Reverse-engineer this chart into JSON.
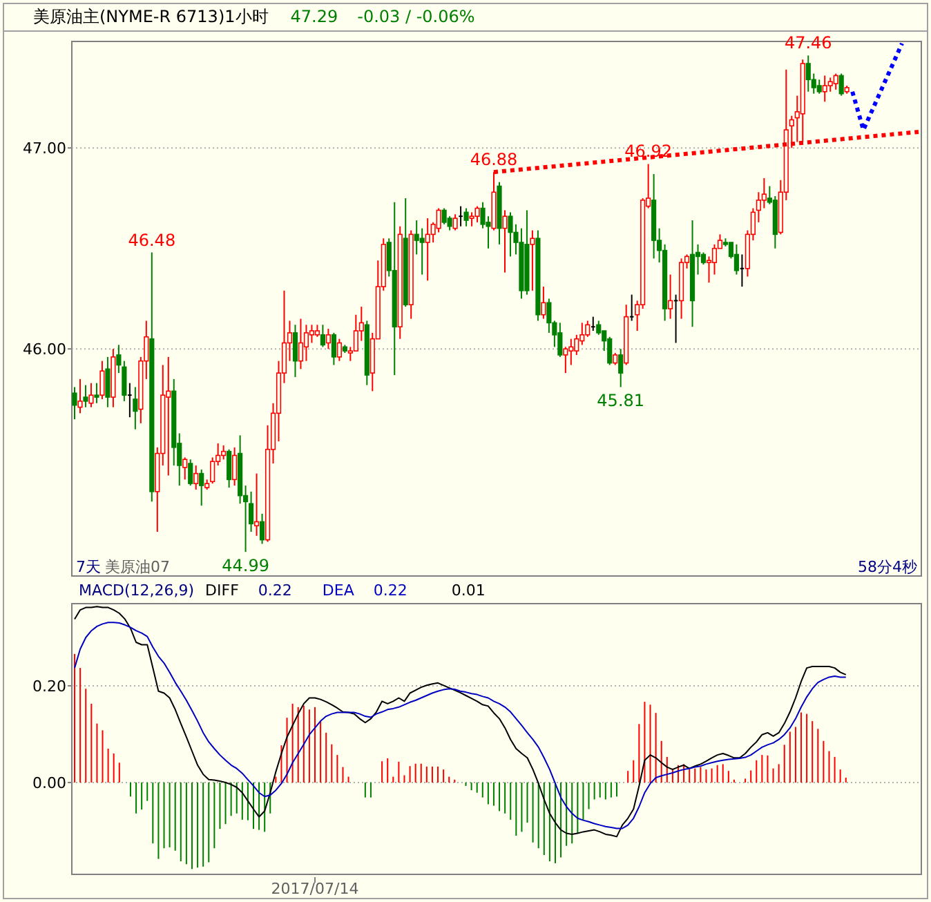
{
  "chart_data": [
    {
      "type": "candlestick",
      "title": "美原油主(NYME-R 6713)1小时",
      "tick_labels": "y",
      "grid": "y",
      "ylim": [
        44.87,
        47.53
      ],
      "yticks": [
        {
          "value": 46,
          "label": "46.00"
        },
        {
          "value": 47,
          "label": "47.00"
        }
      ],
      "annotations": [
        "47.29",
        "-0.03 / -0.06%",
        "7天",
        "美原油07",
        "58分4秒",
        {
          "text": "46.48",
          "y": 46.48
        },
        {
          "text": "44.99",
          "y": 44.99
        },
        {
          "text": "46.88",
          "y": 46.88
        },
        {
          "text": "46.92",
          "y": 46.92
        },
        {
          "text": "45.81",
          "y": 45.81
        },
        {
          "text": "47.46",
          "y": 47.46
        }
      ],
      "categories": [
        null,
        null,
        null,
        null,
        null,
        null,
        null,
        null,
        null,
        null,
        null,
        null,
        null,
        null,
        null,
        null,
        null,
        null,
        null,
        null,
        null,
        null,
        null,
        null,
        null,
        null,
        null,
        null,
        null,
        null,
        null,
        null,
        null,
        null,
        null,
        null,
        null,
        null,
        null,
        null,
        null,
        null,
        null,
        null,
        null,
        null,
        null,
        null,
        null,
        null,
        null,
        null,
        null,
        null,
        null,
        null,
        null,
        null,
        null,
        null,
        null,
        null,
        null,
        null,
        null,
        null,
        null,
        null,
        null,
        null,
        null,
        null,
        null,
        null,
        null,
        null,
        null,
        null,
        null,
        null,
        null,
        null,
        null,
        null,
        null,
        null,
        null,
        null,
        null,
        null,
        null,
        null,
        null,
        null,
        null,
        null,
        null,
        null,
        null,
        null,
        null,
        null,
        null,
        null,
        null,
        null,
        null,
        null,
        null,
        null,
        null,
        null,
        null,
        null,
        null,
        null,
        null,
        null,
        null,
        null,
        null,
        null,
        null,
        null,
        null,
        null,
        null,
        null,
        null,
        null,
        null,
        null,
        null,
        null,
        null,
        null,
        null,
        null,
        null,
        null,
        null,
        null,
        null,
        null,
        null,
        null,
        null,
        null,
        null,
        null,
        null,
        null,
        null,
        null
      ],
      "ohlc": [
        [
          45.78,
          45.81,
          45.65,
          45.72
        ],
        [
          45.71,
          45.85,
          45.68,
          45.74
        ],
        [
          45.76,
          45.82,
          45.71,
          45.74
        ],
        [
          45.73,
          45.83,
          45.71,
          45.77
        ],
        [
          45.77,
          45.83,
          45.73,
          45.76
        ],
        [
          45.77,
          45.94,
          45.75,
          45.89
        ],
        [
          45.9,
          45.96,
          45.71,
          45.76
        ],
        [
          45.76,
          46.0,
          45.71,
          45.96
        ],
        [
          45.97,
          46.02,
          45.88,
          45.92
        ],
        [
          45.91,
          45.94,
          45.74,
          45.77
        ],
        [
          45.77,
          45.83,
          45.66,
          45.77
        ],
        [
          45.75,
          45.81,
          45.6,
          45.69
        ],
        [
          45.7,
          45.96,
          45.63,
          45.94
        ],
        [
          45.94,
          46.14,
          45.85,
          46.06
        ],
        [
          46.05,
          46.48,
          45.24,
          45.29
        ],
        [
          45.29,
          45.51,
          45.09,
          45.48
        ],
        [
          45.48,
          45.92,
          45.42,
          45.77
        ],
        [
          45.76,
          45.96,
          45.37,
          45.79
        ],
        [
          45.79,
          45.85,
          45.42,
          45.51
        ],
        [
          45.53,
          45.58,
          45.32,
          45.42
        ],
        [
          45.41,
          45.46,
          45.35,
          45.45
        ],
        [
          45.43,
          45.45,
          45.32,
          45.33
        ],
        [
          45.33,
          45.42,
          45.3,
          45.38
        ],
        [
          45.38,
          45.4,
          45.22,
          45.32
        ],
        [
          45.31,
          45.35,
          45.3,
          45.33
        ],
        [
          45.34,
          45.46,
          45.33,
          45.44
        ],
        [
          45.44,
          45.53,
          45.42,
          45.47
        ],
        [
          45.47,
          45.52,
          45.45,
          45.49
        ],
        [
          45.49,
          45.5,
          45.31,
          45.35
        ],
        [
          45.35,
          45.51,
          45.32,
          45.47
        ],
        [
          45.48,
          45.57,
          45.23,
          45.27
        ],
        [
          45.27,
          45.32,
          44.99,
          45.24
        ],
        [
          45.23,
          45.29,
          45.09,
          45.13
        ],
        [
          45.12,
          45.38,
          45.07,
          45.14
        ],
        [
          45.14,
          45.18,
          45.03,
          45.05
        ],
        [
          45.05,
          45.62,
          45.04,
          45.5
        ],
        [
          45.5,
          45.73,
          45.43,
          45.68
        ],
        [
          45.68,
          45.94,
          45.54,
          45.88
        ],
        [
          45.88,
          46.29,
          45.83,
          46.03
        ],
        [
          46.03,
          46.14,
          45.94,
          46.08
        ],
        [
          46.08,
          46.12,
          45.86,
          45.94
        ],
        [
          45.94,
          46.15,
          45.9,
          46.03
        ],
        [
          46.01,
          46.12,
          45.94,
          46.08
        ],
        [
          46.07,
          46.12,
          46.03,
          46.09
        ],
        [
          46.07,
          46.12,
          46.06,
          46.09
        ],
        [
          46.07,
          46.12,
          46.01,
          46.02
        ],
        [
          46.03,
          46.1,
          46.0,
          46.07
        ],
        [
          46.07,
          46.08,
          45.92,
          45.96
        ],
        [
          45.96,
          46.05,
          45.94,
          46.03
        ],
        [
          46.01,
          46.02,
          45.98,
          45.99
        ],
        [
          45.98,
          46.01,
          45.94,
          45.99
        ],
        [
          45.99,
          46.17,
          45.99,
          46.09
        ],
        [
          46.09,
          46.21,
          46.04,
          46.13
        ],
        [
          46.12,
          46.14,
          45.82,
          45.87
        ],
        [
          45.88,
          46.08,
          45.79,
          46.05
        ],
        [
          46.05,
          46.44,
          46.05,
          46.31
        ],
        [
          46.31,
          46.55,
          46.29,
          46.52
        ],
        [
          46.53,
          46.55,
          46.36,
          46.39
        ],
        [
          46.39,
          46.73,
          45.87,
          46.11
        ],
        [
          46.11,
          46.61,
          46.05,
          46.57
        ],
        [
          46.55,
          46.75,
          46.21,
          46.22
        ],
        [
          46.22,
          46.59,
          46.15,
          46.57
        ],
        [
          46.57,
          46.64,
          46.47,
          46.54
        ],
        [
          46.55,
          46.6,
          46.37,
          46.53
        ],
        [
          46.53,
          46.65,
          46.34,
          46.57
        ],
        [
          46.57,
          46.63,
          46.53,
          46.62
        ],
        [
          46.6,
          46.7,
          46.58,
          46.69
        ],
        [
          46.69,
          46.7,
          46.62,
          46.63
        ],
        [
          46.65,
          46.66,
          46.59,
          46.61
        ],
        [
          46.6,
          46.67,
          46.59,
          46.65
        ],
        [
          46.66,
          46.71,
          46.61,
          46.66
        ],
        [
          46.68,
          46.7,
          46.61,
          46.64
        ],
        [
          46.65,
          46.68,
          46.61,
          46.66
        ],
        [
          46.66,
          46.71,
          46.63,
          46.7
        ],
        [
          46.7,
          46.73,
          46.6,
          46.62
        ],
        [
          46.63,
          46.66,
          46.5,
          46.61
        ],
        [
          46.6,
          46.88,
          46.59,
          46.78
        ],
        [
          46.81,
          46.83,
          46.52,
          46.6
        ],
        [
          46.6,
          46.69,
          46.38,
          46.66
        ],
        [
          46.66,
          46.68,
          46.46,
          46.58
        ],
        [
          46.58,
          46.62,
          46.47,
          46.53
        ],
        [
          46.53,
          46.6,
          46.25,
          46.29
        ],
        [
          46.52,
          46.69,
          46.27,
          46.29
        ],
        [
          46.52,
          46.59,
          46.29,
          46.55
        ],
        [
          46.55,
          46.59,
          46.14,
          46.17
        ],
        [
          46.17,
          46.31,
          46.15,
          46.23
        ],
        [
          46.23,
          46.25,
          46.08,
          46.13
        ],
        [
          46.13,
          46.14,
          46.01,
          46.07
        ],
        [
          46.08,
          46.13,
          45.96,
          45.97
        ],
        [
          45.97,
          46.01,
          45.88,
          46.0
        ],
        [
          45.99,
          46.05,
          45.92,
          46.01
        ],
        [
          45.99,
          46.07,
          45.97,
          46.05
        ],
        [
          46.04,
          46.13,
          46.02,
          46.07
        ],
        [
          46.07,
          46.14,
          46.06,
          46.12
        ],
        [
          46.11,
          46.16,
          46.09,
          46.11
        ],
        [
          46.12,
          46.14,
          46.07,
          46.08
        ],
        [
          46.09,
          46.09,
          45.99,
          46.04
        ],
        [
          46.05,
          46.06,
          45.92,
          45.93
        ],
        [
          45.93,
          45.98,
          45.92,
          45.97
        ],
        [
          45.97,
          46.0,
          45.81,
          45.88
        ],
        [
          45.93,
          46.22,
          45.92,
          46.16
        ],
        [
          46.16,
          46.27,
          46.14,
          46.16
        ],
        [
          46.17,
          46.24,
          46.09,
          46.22
        ],
        [
          46.22,
          46.75,
          46.2,
          46.74
        ],
        [
          46.71,
          46.92,
          46.7,
          46.75
        ],
        [
          46.74,
          46.87,
          46.45,
          46.54
        ],
        [
          46.54,
          46.6,
          46.43,
          46.49
        ],
        [
          46.49,
          46.52,
          46.14,
          46.2
        ],
        [
          46.2,
          46.37,
          46.15,
          46.24
        ],
        [
          46.24,
          46.27,
          46.03,
          46.24
        ],
        [
          46.24,
          46.45,
          46.15,
          46.43
        ],
        [
          46.43,
          46.47,
          46.4,
          46.46
        ],
        [
          46.47,
          46.64,
          46.11,
          46.24
        ],
        [
          46.48,
          46.52,
          46.37,
          46.46
        ],
        [
          46.47,
          46.48,
          46.42,
          46.43
        ],
        [
          46.43,
          46.46,
          46.33,
          46.44
        ],
        [
          46.43,
          46.52,
          46.37,
          46.5
        ],
        [
          46.5,
          46.57,
          46.5,
          46.54
        ],
        [
          46.53,
          46.55,
          46.51,
          46.52
        ],
        [
          46.53,
          46.53,
          46.45,
          46.46
        ],
        [
          46.47,
          46.52,
          46.37,
          46.39
        ],
        [
          46.4,
          46.47,
          46.31,
          46.4
        ],
        [
          46.4,
          46.59,
          46.36,
          46.57
        ],
        [
          46.57,
          46.7,
          46.54,
          46.68
        ],
        [
          46.69,
          46.78,
          46.63,
          46.74
        ],
        [
          46.74,
          46.85,
          46.7,
          46.77
        ],
        [
          46.75,
          46.81,
          46.72,
          46.73
        ],
        [
          46.74,
          46.76,
          46.5,
          46.57
        ],
        [
          46.58,
          46.84,
          46.57,
          46.78
        ],
        [
          46.78,
          47.39,
          46.74,
          47.09
        ],
        [
          47.11,
          47.16,
          47.0,
          47.14
        ],
        [
          47.15,
          47.26,
          47.03,
          47.18
        ],
        [
          47.17,
          47.44,
          47.03,
          47.42
        ],
        [
          47.42,
          47.46,
          47.28,
          47.34
        ],
        [
          47.34,
          47.37,
          47.27,
          47.3
        ],
        [
          47.31,
          47.34,
          47.27,
          47.28
        ],
        [
          47.28,
          47.36,
          47.23,
          47.31
        ],
        [
          47.31,
          47.35,
          47.28,
          47.33
        ],
        [
          47.32,
          47.37,
          47.29,
          47.36
        ],
        [
          47.36,
          47.37,
          47.26,
          47.27
        ],
        [
          47.28,
          47.31,
          47.27,
          47.3
        ],
        null,
        null,
        null,
        null,
        null,
        null,
        null,
        null,
        null,
        null,
        null,
        null,
        null
      ],
      "colors": [
        "#008000",
        "#ff0000",
        "#008000",
        "#ff0000",
        "#008000",
        "#ff0000",
        "#008000",
        "#ff0000",
        "#008000",
        "#008000",
        "#000000",
        "#008000",
        "#ff0000",
        "#ff0000",
        "#008000",
        "#ff0000",
        "#ff0000",
        "#ff0000",
        "#008000",
        "#008000",
        "#ff0000",
        "#008000",
        "#ff0000",
        "#008000",
        "#ff0000",
        "#ff0000",
        "#ff0000",
        "#ff0000",
        "#008000",
        "#ff0000",
        "#008000",
        "#008000",
        "#008000",
        "#ff0000",
        "#008000",
        "#ff0000",
        "#ff0000",
        "#ff0000",
        "#ff0000",
        "#ff0000",
        "#008000",
        "#ff0000",
        "#ff0000",
        "#ff0000",
        "#ff0000",
        "#008000",
        "#ff0000",
        "#008000",
        "#ff0000",
        "#008000",
        "#ff0000",
        "#ff0000",
        "#ff0000",
        "#008000",
        "#ff0000",
        "#ff0000",
        "#ff0000",
        "#008000",
        "#008000",
        "#ff0000",
        "#008000",
        "#ff0000",
        "#008000",
        "#008000",
        "#ff0000",
        "#ff0000",
        "#ff0000",
        "#008000",
        "#008000",
        "#ff0000",
        "#000000",
        "#008000",
        "#ff0000",
        "#ff0000",
        "#008000",
        "#008000",
        "#ff0000",
        "#008000",
        "#ff0000",
        "#008000",
        "#008000",
        "#008000",
        "#008000",
        "#ff0000",
        "#008000",
        "#ff0000",
        "#008000",
        "#008000",
        "#008000",
        "#ff0000",
        "#ff0000",
        "#ff0000",
        "#ff0000",
        "#ff0000",
        "#000000",
        "#008000",
        "#008000",
        "#008000",
        "#ff0000",
        "#008000",
        "#ff0000",
        "#000000",
        "#ff0000",
        "#ff0000",
        "#ff0000",
        "#008000",
        "#008000",
        "#008000",
        "#ff0000",
        "#000000",
        "#ff0000",
        "#ff0000",
        "#008000",
        "#008000",
        "#008000",
        "#ff0000",
        "#ff0000",
        "#ff0000",
        "#008000",
        "#008000",
        "#008000",
        "#000000",
        "#ff0000",
        "#ff0000",
        "#ff0000",
        "#ff0000",
        "#008000",
        "#008000",
        "#ff0000",
        "#ff0000",
        "#ff0000",
        "#ff0000",
        "#ff0000",
        "#008000",
        "#008000",
        "#008000",
        "#ff0000",
        "#ff0000",
        "#ff0000",
        "#008000",
        "#ff0000",
        null,
        null,
        null,
        null,
        null,
        null,
        null,
        null,
        null,
        null,
        null,
        null,
        null
      ],
      "series": [
        {
          "type": "line",
          "color": "#ff0000",
          "line_style": "dotted",
          "values": [
            null,
            null,
            null,
            null,
            null,
            null,
            null,
            null,
            null,
            null,
            null,
            null,
            null,
            null,
            null,
            null,
            null,
            null,
            null,
            null,
            null,
            null,
            null,
            null,
            null,
            null,
            null,
            null,
            null,
            null,
            null,
            null,
            null,
            null,
            null,
            null,
            null,
            null,
            null,
            null,
            null,
            null,
            null,
            null,
            null,
            null,
            null,
            null,
            null,
            null,
            null,
            null,
            null,
            null,
            null,
            null,
            null,
            null,
            null,
            null,
            null,
            null,
            null,
            null,
            null,
            null,
            null,
            null,
            null,
            null,
            null,
            null,
            null,
            null,
            null,
            null,
            46.88,
            null,
            null,
            null,
            null,
            null,
            null,
            null,
            null,
            null,
            null,
            null,
            null,
            null,
            null,
            null,
            null,
            null,
            null,
            null,
            null,
            null,
            null,
            null,
            null,
            null,
            null,
            null,
            null,
            null,
            null,
            null,
            null,
            null,
            null,
            null,
            null,
            null,
            null,
            null,
            null,
            null,
            null,
            null,
            null,
            null,
            null,
            null,
            null,
            null,
            null,
            null,
            null,
            null,
            null,
            null,
            null,
            null,
            null,
            null,
            null,
            null,
            null,
            null,
            null,
            null,
            null,
            null,
            null,
            null,
            null,
            null,
            null,
            null,
            null,
            null,
            null,
            47.08
          ]
        },
        {
          "type": "line",
          "color": "#0000ff",
          "line_style": "dotted",
          "values": [
            null,
            null,
            null,
            null,
            null,
            null,
            null,
            null,
            null,
            null,
            null,
            null,
            null,
            null,
            null,
            null,
            null,
            null,
            null,
            null,
            null,
            null,
            null,
            null,
            null,
            null,
            null,
            null,
            null,
            null,
            null,
            null,
            null,
            null,
            null,
            null,
            null,
            null,
            null,
            null,
            null,
            null,
            null,
            null,
            null,
            null,
            null,
            null,
            null,
            null,
            null,
            null,
            null,
            null,
            null,
            null,
            null,
            null,
            null,
            null,
            null,
            null,
            null,
            null,
            null,
            null,
            null,
            null,
            null,
            null,
            null,
            null,
            null,
            null,
            null,
            null,
            null,
            null,
            null,
            null,
            null,
            null,
            null,
            null,
            null,
            null,
            null,
            null,
            null,
            null,
            null,
            null,
            null,
            null,
            null,
            null,
            null,
            null,
            null,
            null,
            null,
            null,
            null,
            null,
            null,
            null,
            null,
            null,
            null,
            null,
            null,
            null,
            null,
            null,
            null,
            null,
            null,
            null,
            null,
            null,
            null,
            null,
            null,
            null,
            null,
            null,
            null,
            null,
            null,
            null,
            null,
            null,
            null,
            null,
            null,
            null,
            null,
            null,
            null,
            null,
            null,
            47.28,
            null,
            47.09,
            null,
            null,
            null,
            null,
            null,
            null,
            47.52,
            null,
            null,
            null
          ]
        }
      ]
    },
    {
      "type": "line",
      "title": "MACD(12,26,9)",
      "grid": "y",
      "legend": "top left",
      "ylim": [
        -0.19,
        0.37
      ],
      "yticks": [
        {
          "value": 0,
          "label": "0.00"
        },
        {
          "value": 0.2,
          "label": "0.20"
        }
      ],
      "annotations": [
        "0.22",
        "0.22",
        "0.01"
      ],
      "categories": [
        null,
        null,
        null,
        null,
        null,
        null,
        null,
        null,
        null,
        null,
        null,
        null,
        null,
        null,
        null,
        null,
        null,
        null,
        null,
        null,
        null,
        null,
        null,
        null,
        null,
        null,
        null,
        null,
        null,
        null,
        null,
        null,
        null,
        null,
        null,
        null,
        null,
        null,
        null,
        null,
        null,
        null,
        null,
        "2017/07/14",
        null,
        null,
        null,
        null,
        null,
        null,
        null,
        null,
        null,
        null,
        null,
        null,
        null,
        null,
        null,
        null,
        null,
        null,
        null,
        null,
        null,
        null,
        null,
        null,
        null,
        null,
        null,
        null,
        null,
        null,
        null,
        null,
        null,
        null,
        null,
        null,
        null,
        null,
        null,
        null,
        null,
        null,
        null,
        null,
        null,
        null,
        null,
        null,
        null,
        null,
        null,
        null,
        null,
        null,
        null,
        null,
        null,
        null,
        null,
        null,
        null,
        null,
        null,
        null,
        null,
        null,
        null,
        null,
        null,
        null,
        null,
        null,
        null,
        null,
        null,
        null,
        null,
        null,
        null,
        null,
        null,
        null,
        null,
        null,
        null,
        null,
        null,
        null,
        null,
        null,
        null,
        null,
        null,
        null,
        null,
        null,
        null,
        null,
        null,
        null,
        null,
        null,
        null,
        null,
        null,
        null,
        null,
        null
      ],
      "series": [
        {
          "type": "bar",
          "values": [
            0.266,
            0.237,
            0.194,
            0.163,
            0.122,
            0.108,
            0.07,
            0.06,
            0.041,
            0,
            -0.029,
            -0.064,
            -0.056,
            -0.038,
            -0.126,
            -0.158,
            -0.136,
            -0.134,
            -0.141,
            -0.163,
            -0.169,
            -0.179,
            -0.176,
            -0.174,
            -0.165,
            -0.136,
            -0.096,
            -0.086,
            -0.069,
            -0.064,
            -0.077,
            -0.078,
            -0.096,
            -0.098,
            -0.102,
            -0.064,
            0.012,
            0.077,
            0.134,
            0.163,
            0.156,
            0.159,
            0.151,
            0.156,
            0.127,
            0.103,
            0.079,
            0.057,
            0.032,
            0.012,
            0,
            0,
            -0.031,
            -0.031,
            0,
            0.044,
            0.05,
            0.012,
            0.043,
            0.015,
            0.034,
            0.039,
            0.039,
            0.033,
            0.033,
            0.033,
            0.027,
            0.012,
            0.006,
            0,
            -0.007,
            -0.016,
            -0.021,
            -0.031,
            -0.045,
            -0.048,
            -0.059,
            -0.064,
            -0.077,
            -0.11,
            -0.102,
            -0.083,
            -0.124,
            -0.136,
            -0.15,
            -0.163,
            -0.167,
            -0.155,
            -0.131,
            -0.126,
            -0.105,
            -0.077,
            -0.055,
            -0.035,
            -0.031,
            -0.035,
            -0.031,
            -0.029,
            null,
            0.024,
            0.046,
            0.121,
            0.167,
            0.161,
            0.144,
            0.086,
            0.053,
            0.029,
            0.036,
            0.038,
            0.027,
            0.029,
            0.032,
            0.027,
            0.029,
            0.036,
            0.038,
            0.024,
            0.006,
            null,
            0.008,
            0.025,
            0.046,
            0.057,
            0.056,
            0.029,
            0.038,
            0.078,
            0.105,
            0.115,
            0.145,
            0.142,
            0.127,
            0.111,
            0.086,
            0.065,
            0.053,
            0.027,
            0.01,
            null,
            null,
            null,
            null,
            null,
            null,
            null,
            null,
            null,
            null,
            null,
            null,
            null
          ],
          "colors": [
            "#ff0000",
            "#ff0000",
            "#ff0000",
            "#ff0000",
            "#ff0000",
            "#ff0000",
            "#ff0000",
            "#ff0000",
            "#ff0000",
            "#ff0000",
            "#008000",
            "#008000",
            "#008000",
            "#008000",
            "#008000",
            "#008000",
            "#008000",
            "#008000",
            "#008000",
            "#008000",
            "#008000",
            "#008000",
            "#008000",
            "#008000",
            "#008000",
            "#008000",
            "#008000",
            "#008000",
            "#008000",
            "#008000",
            "#008000",
            "#008000",
            "#008000",
            "#008000",
            "#008000",
            "#008000",
            "#ff0000",
            "#ff0000",
            "#ff0000",
            "#ff0000",
            "#ff0000",
            "#ff0000",
            "#ff0000",
            "#ff0000",
            "#ff0000",
            "#ff0000",
            "#ff0000",
            "#ff0000",
            "#ff0000",
            "#ff0000",
            "#ff0000",
            "#ff0000",
            "#008000",
            "#008000",
            "#ff0000",
            "#ff0000",
            "#ff0000",
            "#ff0000",
            "#ff0000",
            "#ff0000",
            "#ff0000",
            "#ff0000",
            "#ff0000",
            "#ff0000",
            "#ff0000",
            "#ff0000",
            "#ff0000",
            "#ff0000",
            "#ff0000",
            "#ff0000",
            "#008000",
            "#008000",
            "#008000",
            "#008000",
            "#008000",
            "#008000",
            "#008000",
            "#008000",
            "#008000",
            "#008000",
            "#008000",
            "#008000",
            "#008000",
            "#008000",
            "#008000",
            "#008000",
            "#008000",
            "#008000",
            "#008000",
            "#008000",
            "#008000",
            "#008000",
            "#008000",
            "#008000",
            "#008000",
            "#008000",
            "#008000",
            "#008000",
            null,
            "#ff0000",
            "#ff0000",
            "#ff0000",
            "#ff0000",
            "#ff0000",
            "#ff0000",
            "#ff0000",
            "#ff0000",
            "#ff0000",
            "#ff0000",
            "#ff0000",
            "#ff0000",
            "#ff0000",
            "#ff0000",
            "#ff0000",
            "#ff0000",
            "#ff0000",
            "#ff0000",
            "#ff0000",
            "#ff0000",
            null,
            "#ff0000",
            "#ff0000",
            "#ff0000",
            "#ff0000",
            "#ff0000",
            "#ff0000",
            "#ff0000",
            "#ff0000",
            "#ff0000",
            "#ff0000",
            "#ff0000",
            "#ff0000",
            "#ff0000",
            "#ff0000",
            "#ff0000",
            "#ff0000",
            "#ff0000",
            "#ff0000",
            "#ff0000",
            null,
            null,
            null,
            null,
            null,
            null,
            null,
            null,
            null,
            null,
            null,
            null,
            null
          ]
        },
        {
          "name": "DIFF",
          "color": "#000000",
          "values": [
            0.338,
            0.357,
            0.362,
            0.362,
            0.364,
            0.362,
            0.362,
            0.357,
            0.35,
            0.338,
            0.319,
            0.29,
            0.285,
            0.285,
            0.237,
            0.189,
            0.185,
            0.175,
            0.151,
            0.122,
            0.094,
            0.065,
            0.036,
            0.017,
            0.006,
            0.005,
            0.003,
            0,
            -0.004,
            -0.01,
            -0.021,
            -0.038,
            -0.055,
            -0.071,
            -0.059,
            -0.021,
            0.022,
            0.06,
            0.094,
            0.118,
            0.142,
            0.163,
            0.175,
            0.175,
            0.172,
            0.167,
            0.161,
            0.154,
            0.146,
            0.145,
            0.142,
            0.132,
            0.124,
            0.132,
            0.146,
            0.168,
            0.163,
            0.168,
            0.175,
            0.168,
            0.185,
            0.191,
            0.197,
            0.201,
            0.204,
            0.206,
            0.201,
            0.196,
            0.191,
            0.186,
            0.18,
            0.174,
            0.168,
            0.161,
            0.158,
            0.144,
            0.132,
            0.113,
            0.089,
            0.07,
            0.06,
            0.051,
            0.027,
            -0.002,
            -0.035,
            -0.064,
            -0.083,
            -0.098,
            -0.105,
            -0.107,
            -0.105,
            -0.102,
            -0.1,
            -0.098,
            -0.102,
            -0.107,
            -0.109,
            -0.112,
            -0.088,
            -0.074,
            -0.055,
            -0.007,
            0.046,
            0.057,
            0.051,
            0.041,
            0.032,
            0.027,
            0.032,
            0.036,
            0.029,
            0.034,
            0.038,
            0.044,
            0.051,
            0.057,
            0.06,
            0.056,
            0.051,
            0.051,
            0.06,
            0.073,
            0.084,
            0.099,
            0.103,
            0.096,
            0.103,
            0.122,
            0.146,
            0.175,
            0.209,
            0.237,
            0.24,
            0.24,
            0.24,
            0.24,
            0.237,
            0.228,
            0.223,
            null,
            null,
            null,
            null,
            null,
            null,
            null,
            null,
            null,
            null,
            null,
            null,
            null
          ]
        },
        {
          "name": "DEA",
          "color": "#0000c0",
          "values": [
            0.237,
            0.276,
            0.3,
            0.314,
            0.323,
            0.328,
            0.331,
            0.331,
            0.33,
            0.326,
            0.321,
            0.314,
            0.309,
            0.302,
            0.28,
            0.261,
            0.247,
            0.228,
            0.207,
            0.189,
            0.17,
            0.149,
            0.127,
            0.103,
            0.084,
            0.07,
            0.057,
            0.046,
            0.036,
            0.029,
            0.019,
            0.006,
            -0.007,
            -0.021,
            -0.029,
            -0.026,
            -0.016,
            -0.002,
            0.017,
            0.041,
            0.06,
            0.079,
            0.099,
            0.113,
            0.127,
            0.137,
            0.142,
            0.145,
            0.145,
            0.145,
            0.145,
            0.142,
            0.137,
            0.135,
            0.142,
            0.146,
            0.151,
            0.153,
            0.156,
            0.161,
            0.166,
            0.17,
            0.175,
            0.18,
            0.185,
            0.189,
            0.192,
            0.194,
            0.193,
            0.189,
            0.187,
            0.184,
            0.182,
            0.178,
            0.175,
            0.168,
            0.163,
            0.156,
            0.146,
            0.132,
            0.118,
            0.103,
            0.089,
            0.073,
            0.051,
            0.027,
            -0.002,
            -0.031,
            -0.05,
            -0.064,
            -0.074,
            -0.078,
            -0.081,
            -0.085,
            -0.088,
            -0.091,
            -0.093,
            -0.095,
            -0.095,
            -0.088,
            -0.074,
            -0.05,
            -0.021,
            -0.002,
            0.01,
            0.014,
            0.017,
            0.02,
            0.024,
            0.027,
            0.029,
            0.032,
            0.034,
            0.038,
            0.041,
            0.044,
            0.046,
            0.048,
            0.049,
            0.05,
            0.052,
            0.057,
            0.065,
            0.073,
            0.078,
            0.082,
            0.089,
            0.099,
            0.113,
            0.132,
            0.156,
            0.177,
            0.194,
            0.207,
            0.213,
            0.218,
            0.22,
            0.218,
            0.218,
            null,
            null,
            null,
            null,
            null,
            null,
            null,
            null,
            null,
            null,
            null,
            null,
            null
          ]
        }
      ]
    }
  ]
}
